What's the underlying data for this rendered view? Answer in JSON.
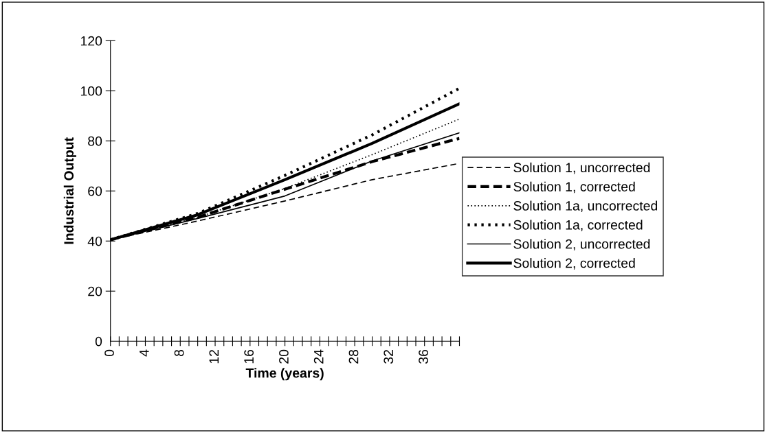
{
  "chart_data": {
    "type": "line",
    "xlabel": "Time (years)",
    "ylabel": "Industrial Output",
    "xlim": [
      0,
      40
    ],
    "ylim": [
      0,
      120
    ],
    "yticks": [
      0,
      20,
      40,
      60,
      80,
      100,
      120
    ],
    "xticks": [
      0,
      {
        "value": 1,
        "label": null
      },
      {
        "value": 2,
        "label": null
      },
      {
        "value": 3,
        "label": null
      },
      4,
      {
        "value": 5,
        "label": null
      },
      {
        "value": 6,
        "label": null
      },
      {
        "value": 7,
        "label": null
      },
      8,
      {
        "value": 9,
        "label": null
      },
      {
        "value": 10,
        "label": null
      },
      {
        "value": 11,
        "label": null
      },
      12,
      {
        "value": 13,
        "label": null
      },
      {
        "value": 14,
        "label": null
      },
      {
        "value": 15,
        "label": null
      },
      16,
      {
        "value": 17,
        "label": null
      },
      {
        "value": 18,
        "label": null
      },
      {
        "value": 19,
        "label": null
      },
      20,
      {
        "value": 21,
        "label": null
      },
      {
        "value": 22,
        "label": null
      },
      {
        "value": 23,
        "label": null
      },
      24,
      {
        "value": 25,
        "label": null
      },
      {
        "value": 26,
        "label": null
      },
      {
        "value": 27,
        "label": null
      },
      28,
      {
        "value": 29,
        "label": null
      },
      {
        "value": 30,
        "label": null
      },
      {
        "value": 31,
        "label": null
      },
      32,
      {
        "value": 33,
        "label": null
      },
      {
        "value": 34,
        "label": null
      },
      {
        "value": 35,
        "label": null
      },
      36,
      {
        "value": 37,
        "label": null
      },
      {
        "value": 38,
        "label": null
      },
      {
        "value": 39,
        "label": null
      },
      {
        "value": 40,
        "label": null
      }
    ],
    "x": [
      0,
      10,
      20,
      30,
      40
    ],
    "grid": false,
    "legend": "right",
    "series": [
      {
        "name": "Solution 1, uncorrected",
        "color": "#000000",
        "line_style": "dashed",
        "values": [
          40.5,
          48,
          56,
          64.5,
          71
        ]
      },
      {
        "name": "Solution 1, corrected",
        "color": "#000000",
        "line_style": "dashed",
        "values": [
          40.5,
          49.5,
          60.7,
          71.7,
          81
        ]
      },
      {
        "name": "Solution 1a, uncorrected",
        "color": "#000000",
        "line_style": "dotted",
        "values": [
          40.5,
          49.5,
          61,
          74.5,
          88.7
        ]
      },
      {
        "name": "Solution 1a, corrected",
        "color": "#000000",
        "line_style": "dotted",
        "values": [
          40.5,
          51,
          66.2,
          82.4,
          101
        ]
      },
      {
        "name": "Solution 2, uncorrected",
        "color": "#000000",
        "line_style": "solid",
        "values": [
          40.5,
          49,
          58,
          72,
          83.2
        ]
      },
      {
        "name": "Solution 2, corrected",
        "color": "#000000",
        "line_style": "solid",
        "values": [
          40.5,
          50.5,
          64.5,
          79,
          94.8
        ]
      }
    ]
  }
}
